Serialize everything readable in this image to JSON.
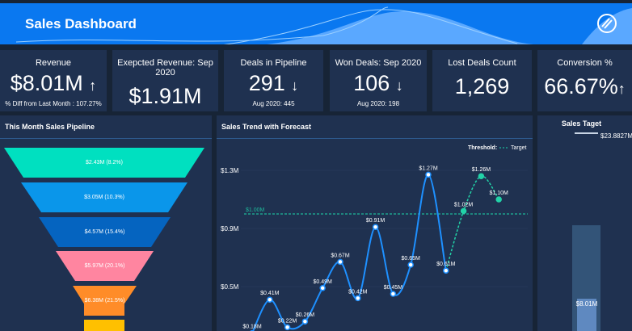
{
  "header": {
    "title": "Sales Dashboard",
    "logo_icon": "zoho-analytics-logo"
  },
  "kpis": [
    {
      "label": "Revenue",
      "value": "$8.01M",
      "trend": "↑",
      "sub": "% Diff from Last Month : 107.27%"
    },
    {
      "label": "Exepcted Revenue: Sep 2020",
      "value": "$1.91M"
    },
    {
      "label": "Deals in Pipeline",
      "value": "291",
      "trend": "↓",
      "sub": "Aug 2020: 445"
    },
    {
      "label": "Won Deals: Sep 2020",
      "value": "106",
      "trend": "↓",
      "sub": "Aug 2020: 198"
    },
    {
      "label": "Lost Deals Count",
      "value": "1,269"
    },
    {
      "label": "Conversion %",
      "value": "66.67%",
      "trend": "↑"
    }
  ],
  "funnel": {
    "title": "This Month Sales Pipeline",
    "segments": [
      {
        "label": "$2.43M (8.2%)",
        "color": "#00e0c0"
      },
      {
        "label": "$3.05M (10.3%)",
        "color": "#0a96ea"
      },
      {
        "label": "$4.57M (15.4%)",
        "color": "#0564c0"
      },
      {
        "label": "$5.97M (20.1%)",
        "color": "#ff85a0"
      },
      {
        "label": "$6.38M (21.5%)",
        "color": "#ff8c28"
      },
      {
        "label": "",
        "color": "#ffc000"
      }
    ]
  },
  "chart_data": {
    "type": "line",
    "title": "Sales Trend with Forecast",
    "yticks": [
      "$1.3M",
      "$0.9M",
      "$0.5M"
    ],
    "ytick_values": [
      1.3,
      0.9,
      0.5
    ],
    "legend": {
      "title": "Threshold:",
      "entry": "Target",
      "placement": "top-right"
    },
    "threshold": {
      "value": 1.0,
      "label": "$1.00M",
      "color": "#1fb89a"
    },
    "series": [
      {
        "values": [
          0.18,
          0.41,
          0.22,
          0.26,
          0.49,
          0.67,
          0.42,
          0.91,
          0.45,
          0.65,
          1.27,
          0.61
        ],
        "labels": [
          "$0.18M",
          "$0.41M",
          "$0.22M",
          "$0.26M",
          "$0.49M",
          "$0.67M",
          "$0.42M",
          "$0.91M",
          "$0.45M",
          "$0.65M",
          "$1.27M",
          "$0.61M"
        ],
        "color": "#1e90ff"
      },
      {
        "values": [
          1.02,
          1.26,
          1.1
        ],
        "labels": [
          "$1.02M",
          "$1.26M",
          "$1.10M"
        ],
        "color": "#22d3a8",
        "forecast": true
      }
    ]
  },
  "target": {
    "title": "Sales Taget",
    "target_label": "$23.8827M",
    "actual_label": "$8.01M",
    "actual": 8.01,
    "target_value": 23.8827
  }
}
